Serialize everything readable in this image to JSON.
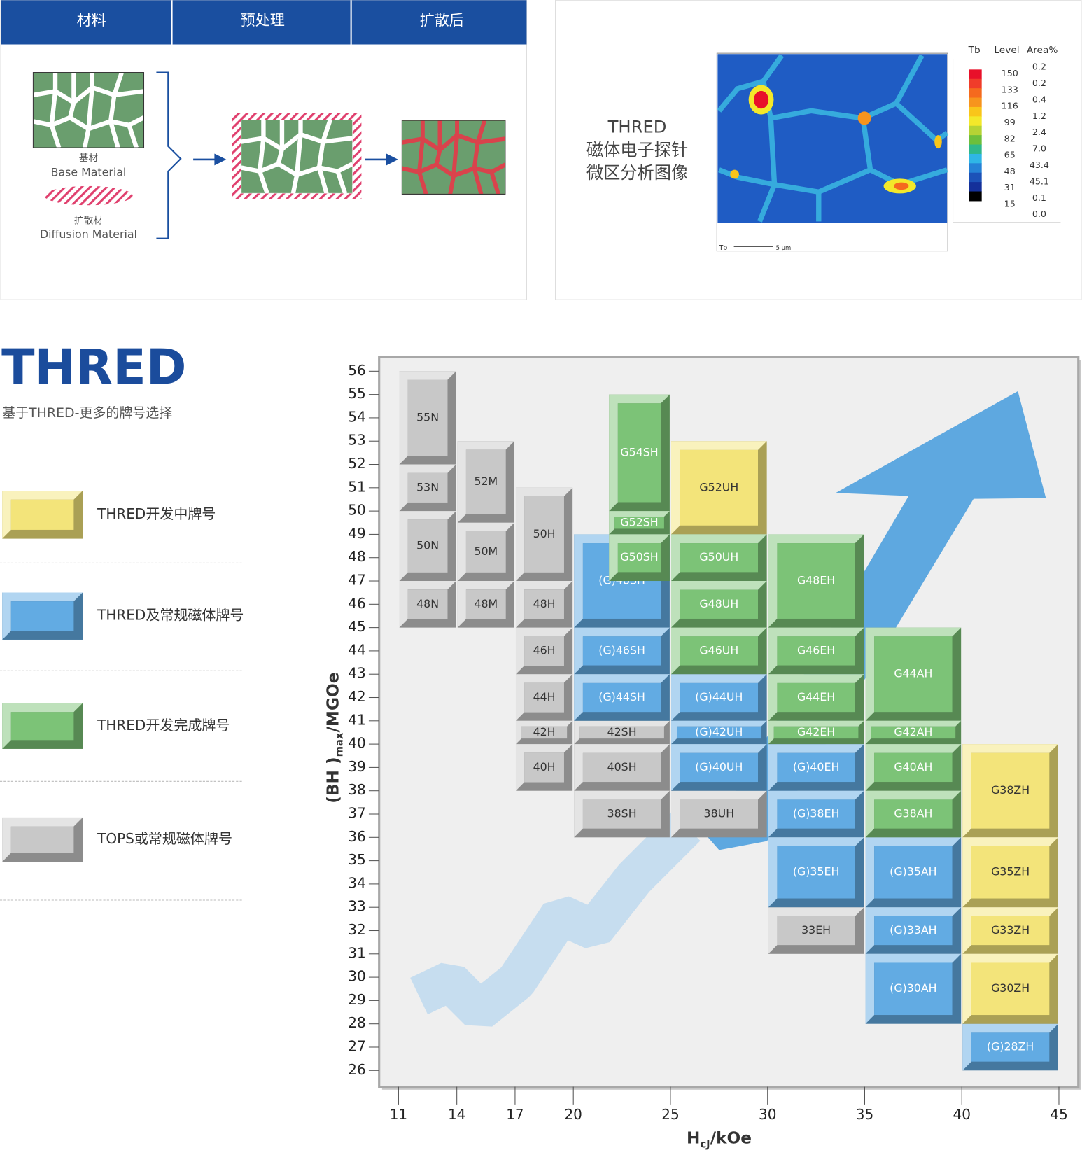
{
  "materials": {
    "tabs": [
      "材料",
      "预处理",
      "扩散后"
    ],
    "base": [
      "基材",
      "Base Material"
    ],
    "diffusion": [
      "扩散材",
      "Diffusion Material"
    ]
  },
  "probe": {
    "title": [
      "THRED",
      "磁体电子探针",
      "微区分析图像"
    ],
    "element": "Tb",
    "scale": "5 μm",
    "headers": [
      "Tb",
      "Level",
      "Area%"
    ],
    "levels": [
      "150",
      "133",
      "116",
      "99",
      "82",
      "65",
      "48",
      "31",
      "15"
    ],
    "area": [
      "0.2",
      "0.2",
      "0.4",
      "1.2",
      "2.4",
      "7.0",
      "43.4",
      "45.1",
      "0.1",
      "0.0"
    ]
  },
  "brand": {
    "title": "THRED",
    "subtitle": "基于THRED-更多的牌号选择"
  },
  "chart_data": {
    "type": "range",
    "x_label": [
      "H",
      "cJ",
      "/kOe"
    ],
    "y_label": [
      "(BH )",
      "max",
      "/MGOe"
    ],
    "xlim": [
      10,
      46
    ],
    "ylim": [
      25.3,
      56.6
    ],
    "xticks": [
      11,
      14,
      17,
      20,
      25,
      30,
      35,
      40,
      45
    ],
    "yticks": [
      26,
      27,
      28,
      29,
      30,
      31,
      32,
      33,
      34,
      35,
      36,
      37,
      38,
      39,
      40,
      41,
      42,
      43,
      44,
      45,
      46,
      47,
      48,
      49,
      50,
      51,
      52,
      53,
      54,
      55,
      56
    ],
    "series": [
      {
        "name": "THRED开发中牌号",
        "color": "#f3e47a",
        "blocks": [
          {
            "label": "G52UH",
            "x": [
              25,
              30
            ],
            "y": [
              49,
              53
            ]
          },
          {
            "label": "G38ZH",
            "x": [
              40,
              45
            ],
            "y": [
              36,
              40
            ]
          },
          {
            "label": "G35ZH",
            "x": [
              40,
              45
            ],
            "y": [
              33,
              36
            ]
          },
          {
            "label": "G33ZH",
            "x": [
              40,
              45
            ],
            "y": [
              31,
              33
            ]
          },
          {
            "label": "G30ZH",
            "x": [
              40,
              45
            ],
            "y": [
              28,
              31
            ]
          }
        ]
      },
      {
        "name": "THRED及常规磁体牌号",
        "color": "#62abe3",
        "blocks": [
          {
            "label": "(G)48SH",
            "x": [
              20,
              25
            ],
            "y": [
              45,
              49
            ]
          },
          {
            "label": "(G)46SH",
            "x": [
              20,
              25
            ],
            "y": [
              43,
              45
            ]
          },
          {
            "label": "(G)44SH",
            "x": [
              20,
              25
            ],
            "y": [
              41,
              43
            ]
          },
          {
            "label": "(G)44UH",
            "x": [
              25,
              30
            ],
            "y": [
              41,
              43
            ]
          },
          {
            "label": "(G)42UH",
            "x": [
              25,
              30
            ],
            "y": [
              40,
              41
            ]
          },
          {
            "label": "(G)40UH",
            "x": [
              25,
              30
            ],
            "y": [
              38,
              40
            ]
          },
          {
            "label": "(G)40EH",
            "x": [
              30,
              35
            ],
            "y": [
              38,
              40
            ]
          },
          {
            "label": "(G)38EH",
            "x": [
              30,
              35
            ],
            "y": [
              36,
              38
            ]
          },
          {
            "label": "(G)35EH",
            "x": [
              30,
              35
            ],
            "y": [
              33,
              36
            ]
          },
          {
            "label": "(G)35AH",
            "x": [
              35,
              40
            ],
            "y": [
              33,
              36
            ]
          },
          {
            "label": "(G)33AH",
            "x": [
              35,
              40
            ],
            "y": [
              31,
              33
            ]
          },
          {
            "label": "(G)30AH",
            "x": [
              35,
              40
            ],
            "y": [
              28,
              31
            ]
          },
          {
            "label": "(G)28ZH",
            "x": [
              40,
              45
            ],
            "y": [
              26,
              28
            ]
          }
        ]
      },
      {
        "name": "THRED开发完成牌号",
        "color": "#7cc377",
        "blocks": [
          {
            "label": "G54SH",
            "x": [
              21.8,
              25
            ],
            "y": [
              50,
              55
            ]
          },
          {
            "label": "G52SH",
            "x": [
              21.8,
              25
            ],
            "y": [
              49,
              50
            ]
          },
          {
            "label": "G50SH",
            "x": [
              21.8,
              25
            ],
            "y": [
              47,
              49
            ]
          },
          {
            "label": "G50UH",
            "x": [
              25,
              30
            ],
            "y": [
              47,
              49
            ]
          },
          {
            "label": "G48UH",
            "x": [
              25,
              30
            ],
            "y": [
              45,
              47
            ]
          },
          {
            "label": "G46UH",
            "x": [
              25,
              30
            ],
            "y": [
              43,
              45
            ]
          },
          {
            "label": "G48EH",
            "x": [
              30,
              35
            ],
            "y": [
              45,
              49
            ]
          },
          {
            "label": "G46EH",
            "x": [
              30,
              35
            ],
            "y": [
              43,
              45
            ]
          },
          {
            "label": "G44EH",
            "x": [
              30,
              35
            ],
            "y": [
              41,
              43
            ]
          },
          {
            "label": "G42EH",
            "x": [
              30,
              35
            ],
            "y": [
              40,
              41
            ]
          },
          {
            "label": "G44AH",
            "x": [
              35,
              40
            ],
            "y": [
              41,
              45
            ]
          },
          {
            "label": "G42AH",
            "x": [
              35,
              40
            ],
            "y": [
              40,
              41
            ]
          },
          {
            "label": "G40AH",
            "x": [
              35,
              40
            ],
            "y": [
              38,
              40
            ]
          },
          {
            "label": "G38AH",
            "x": [
              35,
              40
            ],
            "y": [
              36,
              38
            ]
          }
        ]
      },
      {
        "name": "TOPS或常规磁体牌号",
        "color": "#c8c8c8",
        "blocks": [
          {
            "label": "55N",
            "x": [
              11,
              14
            ],
            "y": [
              52,
              56
            ]
          },
          {
            "label": "53N",
            "x": [
              11,
              14
            ],
            "y": [
              50,
              52
            ]
          },
          {
            "label": "50N",
            "x": [
              11,
              14
            ],
            "y": [
              47,
              50
            ]
          },
          {
            "label": "48N",
            "x": [
              11,
              14
            ],
            "y": [
              45,
              47
            ]
          },
          {
            "label": "52M",
            "x": [
              14,
              17
            ],
            "y": [
              49.5,
              53
            ]
          },
          {
            "label": "50M",
            "x": [
              14,
              17
            ],
            "y": [
              47,
              49.5
            ]
          },
          {
            "label": "48M",
            "x": [
              14,
              17
            ],
            "y": [
              45,
              47
            ]
          },
          {
            "label": "50H",
            "x": [
              17,
              20
            ],
            "y": [
              47,
              51
            ]
          },
          {
            "label": "48H",
            "x": [
              17,
              20
            ],
            "y": [
              45,
              47
            ]
          },
          {
            "label": "46H",
            "x": [
              17,
              20
            ],
            "y": [
              43,
              45
            ]
          },
          {
            "label": "44H",
            "x": [
              17,
              20
            ],
            "y": [
              41,
              43
            ]
          },
          {
            "label": "42H",
            "x": [
              17,
              20
            ],
            "y": [
              40,
              41
            ]
          },
          {
            "label": "40H",
            "x": [
              17,
              20
            ],
            "y": [
              38,
              40
            ]
          },
          {
            "label": "42SH",
            "x": [
              20,
              25
            ],
            "y": [
              40,
              41
            ]
          },
          {
            "label": "40SH",
            "x": [
              20,
              25
            ],
            "y": [
              38,
              40
            ]
          },
          {
            "label": "38SH",
            "x": [
              20,
              25
            ],
            "y": [
              36,
              38
            ]
          },
          {
            "label": "38UH",
            "x": [
              25,
              30
            ],
            "y": [
              36,
              38
            ]
          },
          {
            "label": "33EH",
            "x": [
              30,
              35
            ],
            "y": [
              31,
              33
            ]
          }
        ]
      }
    ]
  }
}
